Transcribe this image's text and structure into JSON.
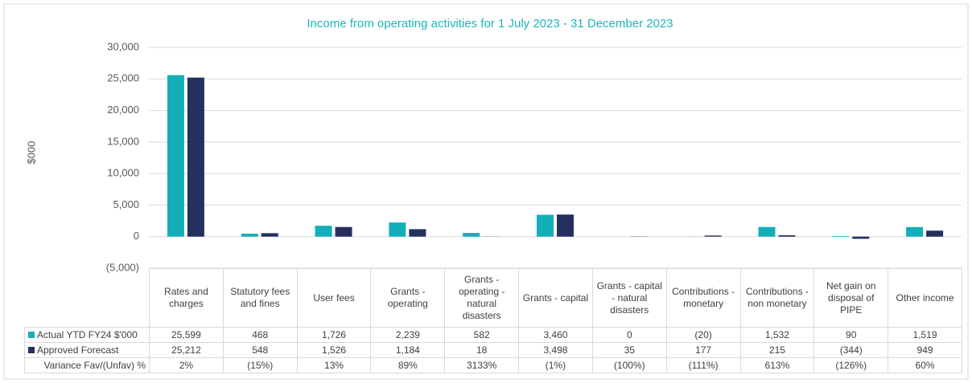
{
  "chart_data": {
    "type": "bar",
    "title": "Income from operating activities for 1 July 2023 - 31 December 2023",
    "y_label": "$000",
    "categories": [
      "Rates and charges",
      "Statutory fees and fines",
      "User fees",
      "Grants - operating",
      "Grants - operating - natural disasters",
      "Grants - capital",
      "Grants - capital - natural disasters",
      "Contributions - monetary",
      "Contributions - non monetary",
      "Net gain on disposal of PIPE",
      "Other income"
    ],
    "series": [
      {
        "name": "Actual YTD FY24 $'000",
        "color": "#12afb8",
        "values": [
          25599,
          468,
          1726,
          2239,
          582,
          3460,
          0,
          -20,
          1532,
          90,
          1519
        ],
        "value_labels": [
          "25,599",
          "468",
          "1,726",
          "2,239",
          "582",
          "3,460",
          "0",
          "(20)",
          "1,532",
          "90",
          "1,519"
        ]
      },
      {
        "name": "Approved Forecast",
        "color": "#26305e",
        "values": [
          25212,
          548,
          1526,
          1184,
          18,
          3498,
          35,
          177,
          215,
          -344,
          949
        ],
        "value_labels": [
          "25,212",
          "548",
          "1,526",
          "1,184",
          "18",
          "3,498",
          "35",
          "177",
          "215",
          "(344)",
          "949"
        ]
      }
    ],
    "variance": {
      "name": "Variance Fav/(Unfav) %",
      "values": [
        2,
        -15,
        13,
        89,
        3133,
        -1,
        -100,
        -111,
        613,
        -126,
        60
      ],
      "value_labels": [
        "2%",
        "(15%)",
        "13%",
        "89%",
        "3133%",
        "(1%)",
        "(100%)",
        "(111%)",
        "613%",
        "(126%)",
        "60%"
      ]
    },
    "ylim": [
      -5000,
      30000
    ],
    "yticks": [
      {
        "value": -5000,
        "label": "(5,000)"
      },
      0,
      {
        "value": 5000,
        "label": "5,000"
      },
      {
        "value": 10000,
        "label": "10,000"
      },
      {
        "value": 15000,
        "label": "15,000"
      },
      {
        "value": 20000,
        "label": "20,000"
      },
      {
        "value": 25000,
        "label": "25,000"
      },
      {
        "value": 30000,
        "label": "30,000"
      }
    ],
    "grid": true
  }
}
